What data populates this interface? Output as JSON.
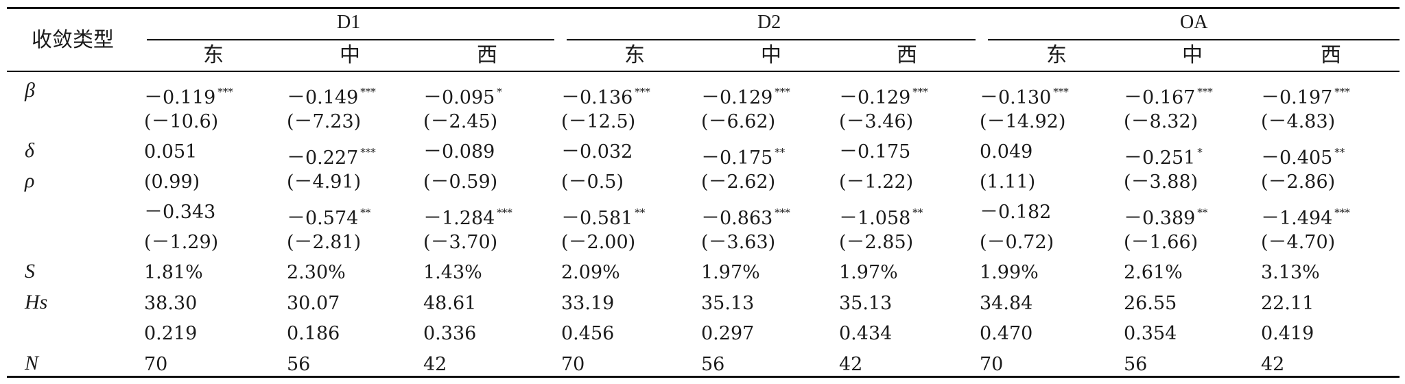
{
  "table": {
    "corner_label": "收敛类型",
    "groups": [
      "D1",
      "D2",
      "OA"
    ],
    "regions": [
      "东",
      "中",
      "西",
      "东",
      "中",
      "西",
      "东",
      "中",
      "西"
    ],
    "rows": [
      {
        "label": "β",
        "cells": [
          [
            "－0.119",
            "***"
          ],
          [
            "－0.149",
            "***"
          ],
          [
            "－0.095",
            "*"
          ],
          [
            "－0.136",
            "***"
          ],
          [
            "－0.129",
            "***"
          ],
          [
            "－0.129",
            "***"
          ],
          [
            "－0.130",
            "***"
          ],
          [
            "－0.167",
            "***"
          ],
          [
            "－0.197",
            "***"
          ]
        ]
      },
      {
        "label": "",
        "cells": [
          [
            "(－10.6)",
            ""
          ],
          [
            "(－7.23)",
            ""
          ],
          [
            "(－2.45)",
            ""
          ],
          [
            "(－12.5)",
            ""
          ],
          [
            "(－6.62)",
            ""
          ],
          [
            "(－3.46)",
            ""
          ],
          [
            "(－14.92)",
            ""
          ],
          [
            "(－8.32)",
            ""
          ],
          [
            "(－4.83)",
            ""
          ]
        ]
      },
      {
        "label": "δ",
        "cells": [
          [
            "0.051",
            ""
          ],
          [
            "－0.227",
            "***"
          ],
          [
            "－0.089",
            ""
          ],
          [
            "－0.032",
            ""
          ],
          [
            "－0.175",
            "**"
          ],
          [
            "－0.175",
            ""
          ],
          [
            "0.049",
            ""
          ],
          [
            "－0.251",
            "*"
          ],
          [
            "－0.405",
            "**"
          ]
        ]
      },
      {
        "label": "ρ",
        "cells": [
          [
            "(0.99)",
            ""
          ],
          [
            "(－4.91)",
            ""
          ],
          [
            "(－0.59)",
            ""
          ],
          [
            "(－0.5)",
            ""
          ],
          [
            "(－2.62)",
            ""
          ],
          [
            "(－1.22)",
            ""
          ],
          [
            "(1.11)",
            ""
          ],
          [
            "(－3.88)",
            ""
          ],
          [
            "(－2.86)",
            ""
          ]
        ]
      },
      {
        "label": "",
        "cells": [
          [
            "－0.343",
            ""
          ],
          [
            "－0.574",
            "**"
          ],
          [
            "－1.284",
            "***"
          ],
          [
            "－0.581",
            "**"
          ],
          [
            "－0.863",
            "***"
          ],
          [
            "－1.058",
            "**"
          ],
          [
            "－0.182",
            ""
          ],
          [
            "－0.389",
            "**"
          ],
          [
            "－1.494",
            "***"
          ]
        ]
      },
      {
        "label": "",
        "cells": [
          [
            "(－1.29)",
            ""
          ],
          [
            "(－2.81)",
            ""
          ],
          [
            "(－3.70)",
            ""
          ],
          [
            "(－2.00)",
            ""
          ],
          [
            "(－3.63)",
            ""
          ],
          [
            "(－2.85)",
            ""
          ],
          [
            "(－0.72)",
            ""
          ],
          [
            "(－1.66)",
            ""
          ],
          [
            "(－4.70)",
            ""
          ]
        ]
      },
      {
        "label": "S",
        "cells": [
          [
            "1.81%",
            ""
          ],
          [
            "2.30%",
            ""
          ],
          [
            "1.43%",
            ""
          ],
          [
            "2.09%",
            ""
          ],
          [
            "1.97%",
            ""
          ],
          [
            "1.97%",
            ""
          ],
          [
            "1.99%",
            ""
          ],
          [
            "2.61%",
            ""
          ],
          [
            "3.13%",
            ""
          ]
        ]
      },
      {
        "label": "Hs",
        "cells": [
          [
            "38.30",
            ""
          ],
          [
            "30.07",
            ""
          ],
          [
            "48.61",
            ""
          ],
          [
            "33.19",
            ""
          ],
          [
            "35.13",
            ""
          ],
          [
            "35.13",
            ""
          ],
          [
            "34.84",
            ""
          ],
          [
            "26.55",
            ""
          ],
          [
            "22.11",
            ""
          ]
        ]
      },
      {
        "label": "",
        "cells": [
          [
            "0.219",
            ""
          ],
          [
            "0.186",
            ""
          ],
          [
            "0.336",
            ""
          ],
          [
            "0.456",
            ""
          ],
          [
            "0.297",
            ""
          ],
          [
            "0.434",
            ""
          ],
          [
            "0.470",
            ""
          ],
          [
            "0.354",
            ""
          ],
          [
            "0.419",
            ""
          ]
        ]
      },
      {
        "label": "N",
        "cells": [
          [
            "70",
            ""
          ],
          [
            "56",
            ""
          ],
          [
            "42",
            ""
          ],
          [
            "70",
            ""
          ],
          [
            "56",
            ""
          ],
          [
            "42",
            ""
          ],
          [
            "70",
            ""
          ],
          [
            "56",
            ""
          ],
          [
            "42",
            ""
          ]
        ]
      }
    ]
  }
}
